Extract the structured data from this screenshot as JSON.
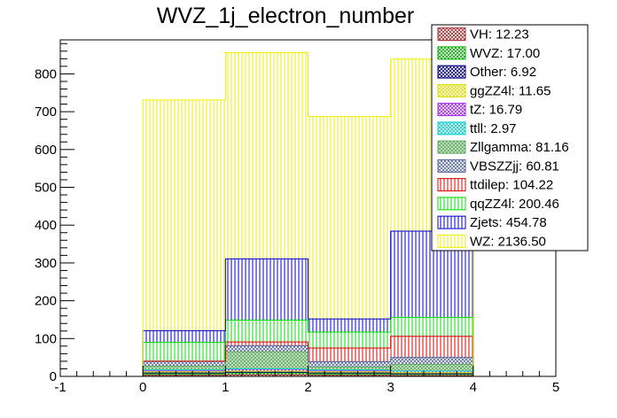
{
  "chart_data": {
    "type": "bar",
    "title": "WVZ_1j_electron_number",
    "stacked": true,
    "x_edges": [
      0,
      1,
      2,
      3,
      4
    ],
    "xlim": [
      -1,
      5
    ],
    "ylim": [
      0,
      890
    ],
    "x_ticks": [
      "-1",
      "0",
      "1",
      "2",
      "3",
      "4",
      "5"
    ],
    "y_ticks": [
      "0",
      "100",
      "200",
      "300",
      "400",
      "500",
      "600",
      "700",
      "800"
    ],
    "legend_position": "top-right",
    "series": [
      {
        "name": "VH: 12.23",
        "values": [
          3,
          4,
          3,
          2
        ],
        "fill": "#ffffff",
        "line": "#a52a2a",
        "pattern": "crosshatch"
      },
      {
        "name": "WVZ: 17.00",
        "values": [
          4,
          5,
          4,
          4
        ],
        "fill": "#ffffff",
        "line": "#00aa00",
        "pattern": "crosshatch"
      },
      {
        "name": "Other: 6.92",
        "values": [
          2,
          2,
          2,
          1
        ],
        "fill": "#ffffff",
        "line": "#000080",
        "pattern": "crosshatch"
      },
      {
        "name": "ggZZ4l: 11.65",
        "values": [
          3,
          3,
          3,
          3
        ],
        "fill": "#ffffff",
        "line": "#dddd00",
        "pattern": "crosshatch"
      },
      {
        "name": "tZ: 16.79",
        "values": [
          4,
          5,
          4,
          4
        ],
        "fill": "#ffffff",
        "line": "#a020f0",
        "pattern": "crosshatch"
      },
      {
        "name": "ttll: 2.97",
        "values": [
          1,
          1,
          1,
          0
        ],
        "fill": "#ffffff",
        "line": "#00cccc",
        "pattern": "crosshatch"
      },
      {
        "name": "Zllgamma: 81.16",
        "values": [
          10,
          45,
          8,
          18
        ],
        "fill": "#c8e8c8",
        "line": "#66aa66",
        "pattern": "crosshatch"
      },
      {
        "name": "VBSZZjj: 60.81",
        "values": [
          13,
          16,
          14,
          18
        ],
        "fill": "#ffffff",
        "line": "#556699",
        "pattern": "crosshatch"
      },
      {
        "name": "ttdilep: 104.22",
        "values": [
          0,
          10,
          36,
          56
        ],
        "fill": "#ffffff",
        "line": "#dd0000",
        "pattern": "vertical"
      },
      {
        "name": "qqZZ4l: 200.46",
        "values": [
          50,
          58,
          42,
          50
        ],
        "fill": "#ffffff",
        "line": "#00dd00",
        "pattern": "vertical"
      },
      {
        "name": "Zjets: 454.78",
        "values": [
          31,
          162,
          35,
          228
        ],
        "fill": "#ffffff",
        "line": "#0000cc",
        "pattern": "vertical"
      },
      {
        "name": "WZ: 2136.50",
        "values": [
          610,
          545,
          535,
          455
        ],
        "fill": "#ffffff",
        "line": "#eeee00",
        "pattern": "vertical"
      }
    ]
  }
}
